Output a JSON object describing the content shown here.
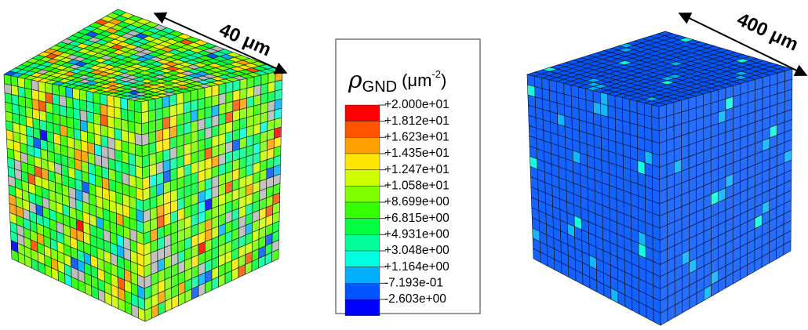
{
  "left_cube": {
    "label": "40 μm"
  },
  "right_cube": {
    "label": "400 μm"
  },
  "legend": {
    "title": {
      "symbol": "ρ",
      "subscript": "GND",
      "unit_open": "(μm",
      "unit_exponent": "-2",
      "unit_close": ")"
    },
    "labels": [
      "+2.000e+01",
      "+1.812e+01",
      "+1.623e+01",
      "+1.435e+01",
      "+1.247e+01",
      "+1.058e+01",
      "+8.699e+00",
      "+6.815e+00",
      "+4.931e+00",
      "+3.048e+00",
      "+1.164e+00",
      "-7.193e-01",
      "-2.603e+00"
    ],
    "colors": [
      "#ff0000",
      "#ff5500",
      "#ffa000",
      "#ffe600",
      "#ccff00",
      "#80ff00",
      "#33ff00",
      "#00ff40",
      "#00ff99",
      "#00ffe0",
      "#00b0ff",
      "#0055ff",
      "#0000ff"
    ]
  }
}
